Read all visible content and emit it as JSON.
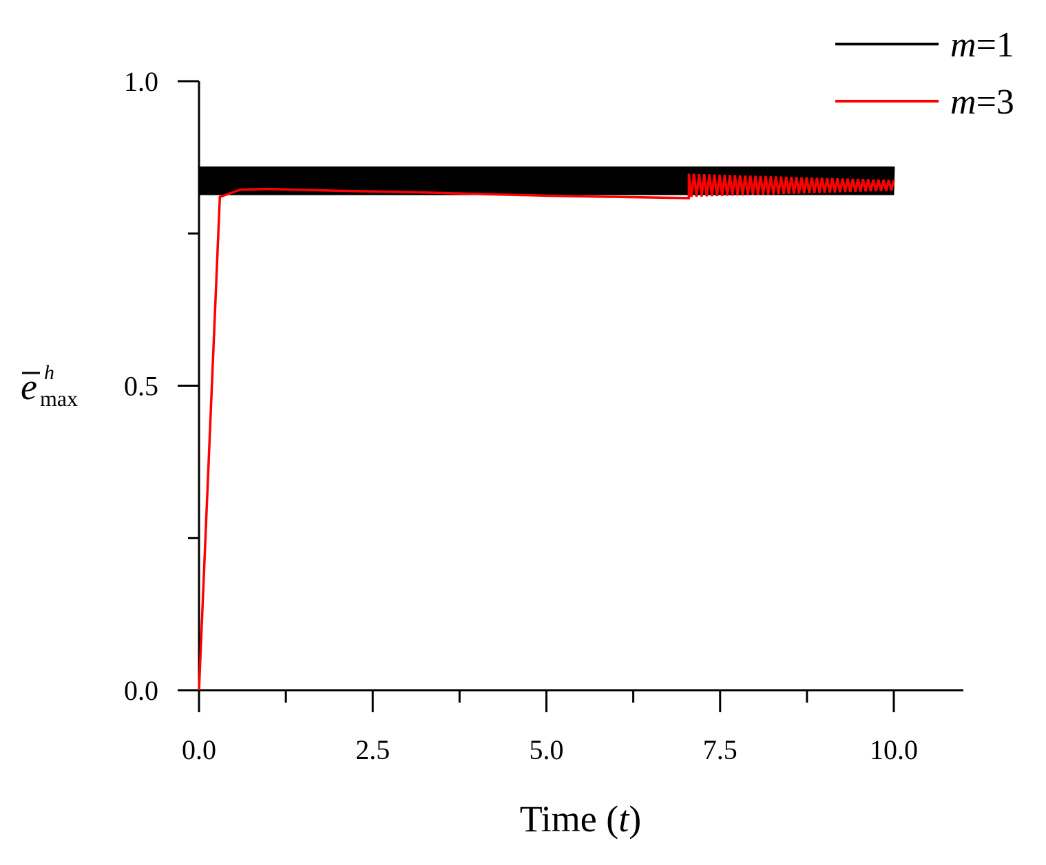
{
  "chart_data": {
    "type": "line",
    "title": "",
    "xlabel": "Time (t)",
    "xlabel_parts": {
      "prefix": "Time (",
      "var": "t",
      "suffix": ")"
    },
    "ylabel": "ē^h_max",
    "ylabel_parts": {
      "base": "e",
      "sup": "h",
      "sub": "max"
    },
    "xlim": [
      0,
      11
    ],
    "ylim": [
      0,
      1.0
    ],
    "x_major_ticks": [
      0,
      2.5,
      5,
      7.5,
      10
    ],
    "x_tick_labels": [
      "0.0",
      "2.5",
      "5.0",
      "7.5",
      "10.0"
    ],
    "x_minor_ticks": [
      1.25,
      3.75,
      6.25,
      8.75
    ],
    "y_major_ticks": [
      0,
      0.5,
      1.0
    ],
    "y_tick_labels": [
      "0.0",
      "0.5",
      "1.0"
    ],
    "y_minor_ticks": [
      0.25,
      0.75
    ],
    "grid": false,
    "legend_position": "top-right",
    "series": [
      {
        "name": "m=1",
        "name_parts": {
          "var": "m",
          "rest": "=1"
        },
        "color": "#000000",
        "x_range": [
          0,
          10
        ],
        "oscillation_band": [
          0.813,
          0.86
        ],
        "description_of_signal": "dense oscillation between band limits"
      },
      {
        "name": "m=3",
        "name_parts": {
          "var": "m",
          "rest": "=3"
        },
        "color": "#ff0000",
        "x": [
          0.0,
          0.3,
          0.6,
          1.0,
          2.0,
          3.0,
          4.0,
          5.0,
          6.0,
          7.05
        ],
        "y": [
          0.0,
          0.81,
          0.822,
          0.823,
          0.82,
          0.818,
          0.815,
          0.812,
          0.81,
          0.808
        ],
        "oscillating_tail": {
          "x_range": [
            7.05,
            10.0
          ],
          "y_low": 0.81,
          "y_high": 0.848
        }
      }
    ]
  }
}
